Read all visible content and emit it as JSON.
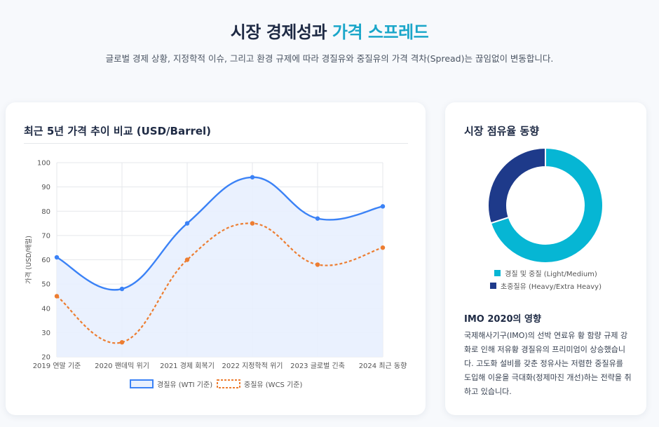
{
  "hero": {
    "title_main": "시장 경제성과",
    "title_accent": "가격 스프레드",
    "subtitle": "글로벌 경제 상황, 지정학적 이슈, 그리고 환경 규제에 따라 경질유와 중질유의 가격 격차(Spread)는 끊임없이 변동합니다."
  },
  "price_card": {
    "title": "최근 5년 가격 추이 비교 (USD/Barrel)"
  },
  "share_card": {
    "title": "시장 점유율 동향",
    "imo_title": "IMO 2020의 영향",
    "imo_body": "국제해사기구(IMO)의 선박 연료유 황 함량 규제 강화로 인해 저유황 경질유의 프리미엄이 상승했습니다. 고도화 설비를 갖춘 정유사는 저렴한 중질유를 도입해 이윤을 극대화(정제마진 개선)하는 전략을 취하고 있습니다."
  },
  "colors": {
    "wti": "#3b82f6",
    "wti_fill": "#e8f0fe",
    "wcs": "#ed7d31",
    "light": "#06b6d4",
    "heavy": "#1e3a8a"
  },
  "chart_data": [
    {
      "type": "line",
      "categories": [
        "2019 연말 기준",
        "2020 팬데믹 위기",
        "2021 경제 회복기",
        "2022 지정학적 위기",
        "2023 글로벌 긴축",
        "2024 최근 동향"
      ],
      "series": [
        {
          "name": "경질유 (WTI 기준)",
          "values": [
            61,
            48,
            75,
            94,
            77,
            82
          ],
          "style": "solid",
          "fill": true
        },
        {
          "name": "중질유 (WCS 기준)",
          "values": [
            45,
            26,
            60,
            75,
            58,
            65
          ],
          "style": "dashed",
          "fill": false
        }
      ],
      "ylabel": "가격 (USD/배럴)",
      "ylim": [
        20,
        100
      ],
      "yticks": [
        "100",
        "90",
        "80",
        "70",
        "60",
        "50",
        "40",
        "30",
        "20"
      ],
      "grid": true,
      "legend": "bottom"
    },
    {
      "type": "pie",
      "donut": true,
      "labels": [
        "경질 및 중질 (Light/Medium)",
        "초중질유 (Heavy/Extra Heavy)"
      ],
      "values": [
        70,
        30
      ],
      "legend": "bottom"
    }
  ]
}
